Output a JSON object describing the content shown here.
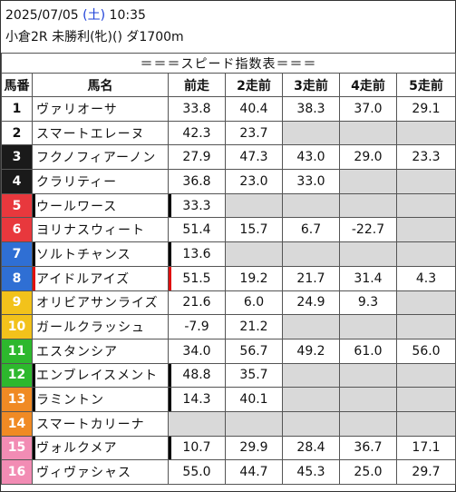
{
  "header": {
    "date": "2025/07/05",
    "weekday": "(土)",
    "time": "10:35",
    "race": "小倉2R 未勝利(牝)() ダ1700m"
  },
  "table": {
    "title": "＝＝＝スピード指数表＝＝＝",
    "columns": [
      "馬番",
      "馬名",
      "前走",
      "2走前",
      "3走前",
      "4走前",
      "5走前"
    ],
    "rows": [
      {
        "no": "1",
        "name": "ヴァリオーサ",
        "v": [
          "33.8",
          "40.4",
          "38.3",
          "37.0",
          "29.1"
        ],
        "mark": "",
        "bg": "#ffffff",
        "fg": "#111111"
      },
      {
        "no": "2",
        "name": "スマートエレーヌ",
        "v": [
          "42.3",
          "23.7",
          "",
          "",
          ""
        ],
        "mark": "",
        "bg": "#ffffff",
        "fg": "#111111"
      },
      {
        "no": "3",
        "name": "フクノフィアーノン",
        "v": [
          "27.9",
          "47.3",
          "43.0",
          "29.0",
          "23.3"
        ],
        "mark": "",
        "bg": "#1a1a1a",
        "fg": "#ffffff"
      },
      {
        "no": "4",
        "name": "クラリティー",
        "v": [
          "36.8",
          "23.0",
          "33.0",
          "",
          ""
        ],
        "mark": "",
        "bg": "#1a1a1a",
        "fg": "#ffffff"
      },
      {
        "no": "5",
        "name": "ウールワース",
        "v": [
          "33.3",
          "",
          "",
          "",
          ""
        ],
        "mark": "black",
        "bg": "#e8383d",
        "fg": "#ffffff"
      },
      {
        "no": "6",
        "name": "ヨリナスウィート",
        "v": [
          "51.4",
          "15.7",
          "6.7",
          "-22.7",
          ""
        ],
        "mark": "",
        "bg": "#e8383d",
        "fg": "#ffffff"
      },
      {
        "no": "7",
        "name": "ソルトチャンス",
        "v": [
          "13.6",
          "",
          "",
          "",
          ""
        ],
        "mark": "black",
        "bg": "#2f6fd4",
        "fg": "#ffffff"
      },
      {
        "no": "8",
        "name": "アイドルアイズ",
        "v": [
          "51.5",
          "19.2",
          "21.7",
          "31.4",
          "4.3"
        ],
        "mark": "red",
        "bg": "#2f6fd4",
        "fg": "#ffffff"
      },
      {
        "no": "9",
        "name": "オリビアサンライズ",
        "v": [
          "21.6",
          "6.0",
          "24.9",
          "9.3",
          ""
        ],
        "mark": "",
        "bg": "#f2c21b",
        "fg": "#ffffff"
      },
      {
        "no": "10",
        "name": "ガールクラッシュ",
        "v": [
          "-7.9",
          "21.2",
          "",
          "",
          ""
        ],
        "mark": "",
        "bg": "#f2c21b",
        "fg": "#ffffff"
      },
      {
        "no": "11",
        "name": "エスタンシア",
        "v": [
          "34.0",
          "56.7",
          "49.2",
          "61.0",
          "56.0"
        ],
        "mark": "",
        "bg": "#2db82d",
        "fg": "#ffffff"
      },
      {
        "no": "12",
        "name": "エンブレイスメント",
        "v": [
          "48.8",
          "35.7",
          "",
          "",
          ""
        ],
        "mark": "black",
        "bg": "#2db82d",
        "fg": "#ffffff"
      },
      {
        "no": "13",
        "name": "ラミントン",
        "v": [
          "14.3",
          "40.1",
          "",
          "",
          ""
        ],
        "mark": "black",
        "bg": "#f08a24",
        "fg": "#ffffff"
      },
      {
        "no": "14",
        "name": "スマートカリーナ",
        "v": [
          "",
          "",
          "",
          "",
          ""
        ],
        "mark": "",
        "bg": "#f08a24",
        "fg": "#ffffff"
      },
      {
        "no": "15",
        "name": "ヴォルクメア",
        "v": [
          "10.7",
          "29.9",
          "28.4",
          "36.7",
          "17.1"
        ],
        "mark": "black",
        "bg": "#f28cb4",
        "fg": "#ffffff"
      },
      {
        "no": "16",
        "name": "ヴィヴァシャス",
        "v": [
          "55.0",
          "44.7",
          "45.3",
          "25.0",
          "29.7"
        ],
        "mark": "",
        "bg": "#f28cb4",
        "fg": "#ffffff"
      }
    ]
  }
}
